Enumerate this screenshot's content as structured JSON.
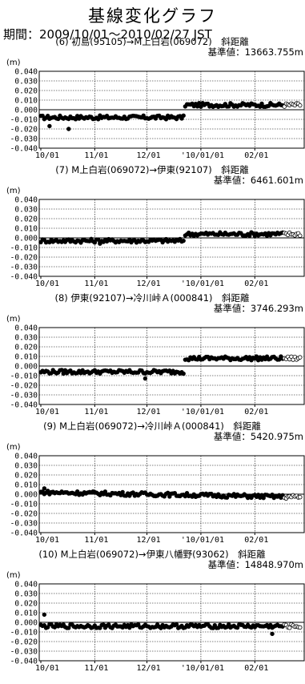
{
  "title": "基線変化グラフ",
  "period": "期間：2009/10/01～2010/02/27 JST",
  "unit": "(m)",
  "y_ticks": [
    "0.040",
    "0.030",
    "0.020",
    "0.010",
    "0.000",
    "-0.010",
    "-0.020",
    "-0.030",
    "-0.040"
  ],
  "x_ticks": [
    "10/01",
    "11/01",
    "12/01",
    "'10/01/01",
    "02/01"
  ],
  "chart_data": [
    {
      "type": "scatter",
      "title": "(6) 初島(95105)→M上白岩(069072)　斜距離",
      "baseline": "基準値：13663.755m",
      "ylim": [
        -0.04,
        0.04
      ],
      "segments": [
        {
          "from": 0,
          "to": 82,
          "level": -0.008
        },
        {
          "from": 83,
          "to": 150,
          "level": 0.005
        }
      ],
      "outliers": [
        [
          5,
          -0.017
        ],
        [
          16,
          -0.02
        ]
      ]
    },
    {
      "type": "scatter",
      "title": "(7) M上白岩(069072)→伊東(92107)　斜距離",
      "baseline": "基準値：6461.601m",
      "ylim": [
        -0.04,
        0.04
      ],
      "segments": [
        {
          "from": 0,
          "to": 82,
          "level": -0.003
        },
        {
          "from": 83,
          "to": 150,
          "level": 0.004
        }
      ],
      "outliers": [
        [
          34,
          -0.006
        ]
      ]
    },
    {
      "type": "scatter",
      "title": "(8) 伊東(92107)→冷川峠Ａ(000841)　斜距離",
      "baseline": "基準値：3746.293m",
      "ylim": [
        -0.04,
        0.04
      ],
      "segments": [
        {
          "from": 0,
          "to": 82,
          "level": -0.006
        },
        {
          "from": 83,
          "to": 150,
          "level": 0.008
        }
      ],
      "outliers": [
        [
          60,
          -0.013
        ]
      ]
    },
    {
      "type": "scatter",
      "title": "(9) M上白岩(069072)→冷川峠Ａ(000841)　斜距離",
      "baseline": "基準値：5420.975m",
      "ylim": [
        -0.04,
        0.04
      ],
      "segments": [
        {
          "from": 0,
          "to": 150,
          "level": 0.002,
          "slope": -0.005
        }
      ],
      "outliers": [
        [
          2,
          0.006
        ]
      ]
    },
    {
      "type": "scatter",
      "title": "(10) M上白岩(069072)→伊東八幡野(93062)　斜距離",
      "baseline": "基準値：14848.970m",
      "ylim": [
        -0.04,
        0.04
      ],
      "segments": [
        {
          "from": 0,
          "to": 150,
          "level": -0.004
        }
      ],
      "outliers": [
        [
          2,
          0.008
        ],
        [
          133,
          -0.012
        ]
      ]
    }
  ]
}
